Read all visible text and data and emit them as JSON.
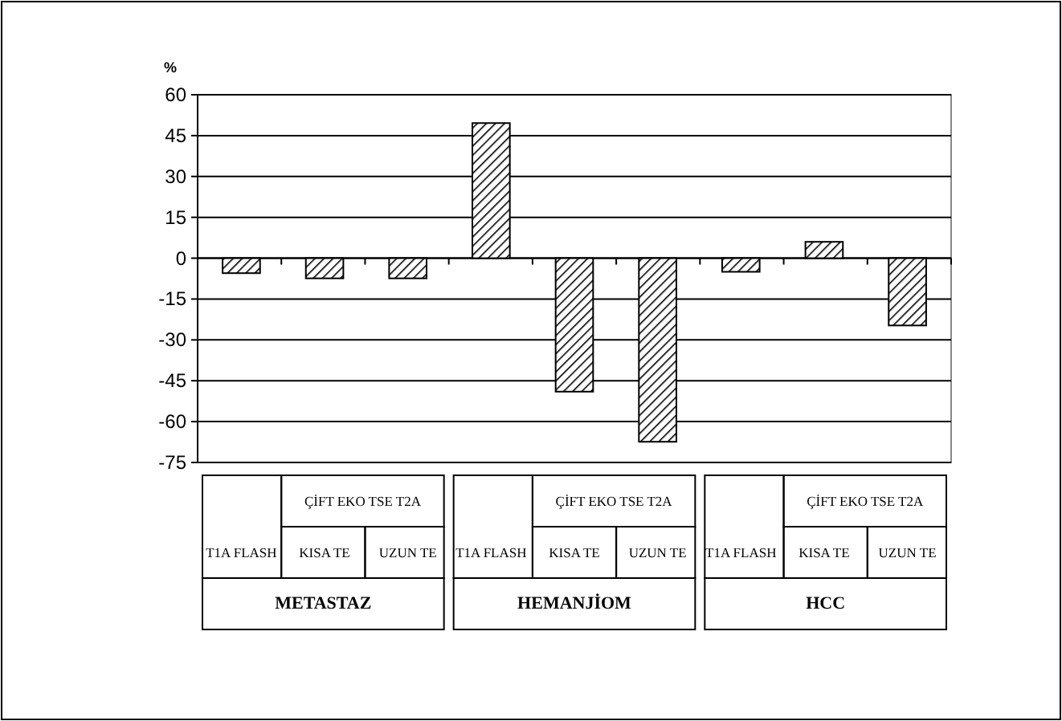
{
  "chart_data": {
    "type": "bar",
    "ylabel": "%",
    "categories": [
      "T1A FLASH",
      "KISA TE",
      "UZUN TE",
      "T1A FLASH",
      "KISA TE",
      "UZUN TE",
      "T1A FLASH",
      "KISA TE",
      "UZUN TE"
    ],
    "values": [
      -5.5,
      -7.4,
      -7.4,
      49.6,
      -49,
      -67.4,
      -5,
      6,
      -24.7
    ],
    "color": "#000000",
    "ylim": [
      -75,
      60
    ],
    "yticks": [
      -75,
      -60,
      -45,
      -30,
      -15,
      0,
      15,
      30,
      45,
      60
    ],
    "grid": "y",
    "annotations": [
      "ÇİFT EKO TSE T2A",
      "ÇİFT EKO TSE T2A",
      "ÇİFT EKO TSE T2A",
      "METASTAZ",
      "HEMANJİOM",
      "HCC"
    ]
  }
}
